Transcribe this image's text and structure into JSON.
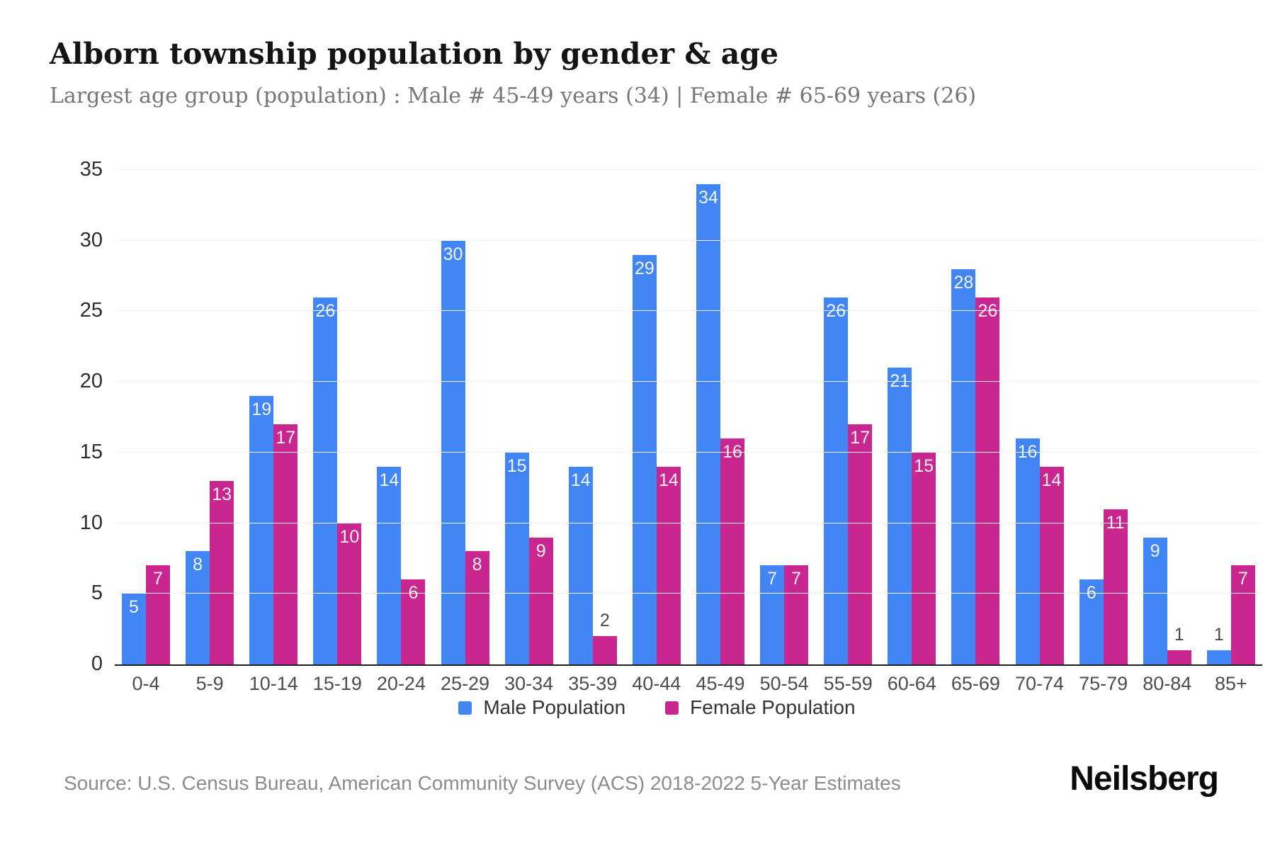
{
  "header": {
    "title": "Alborn township population by gender & age",
    "subtitle": "Largest age group (population) : Male # 45-49 years (34) | Female # 65-69 years (26)"
  },
  "footer": {
    "source": "Source: U.S. Census Bureau, American Community Survey (ACS) 2018-2022 5-Year Estimates",
    "logo": "Neilsberg"
  },
  "chart_data": {
    "type": "bar",
    "title": "Alborn township population by gender & age",
    "subtitle": "Largest age group (population) : Male # 45-49 years (34) | Female # 65-69 years (26)",
    "categories": [
      "0-4",
      "5-9",
      "10-14",
      "15-19",
      "20-24",
      "25-29",
      "30-34",
      "35-39",
      "40-44",
      "45-49",
      "50-54",
      "55-59",
      "60-64",
      "65-69",
      "70-74",
      "75-79",
      "80-84",
      "85+"
    ],
    "series": [
      {
        "name": "Male Population",
        "color": "#4285F4",
        "values": [
          5,
          8,
          19,
          26,
          14,
          30,
          15,
          14,
          29,
          34,
          7,
          26,
          21,
          28,
          16,
          6,
          9,
          1
        ]
      },
      {
        "name": "Female Population",
        "color": "#C9278F",
        "values": [
          7,
          13,
          17,
          10,
          6,
          8,
          9,
          2,
          14,
          16,
          7,
          17,
          15,
          26,
          14,
          11,
          1,
          7
        ]
      }
    ],
    "xlabel": "",
    "ylabel": "",
    "ylim": [
      0,
      35
    ],
    "yticks": [
      0,
      5,
      10,
      15,
      20,
      25,
      30,
      35
    ],
    "grid": true,
    "legend_position": "bottom",
    "bar_label_color_inside": "rgba(255,255,255,0.93)",
    "bar_label_color_above": "#4a4a4a"
  }
}
